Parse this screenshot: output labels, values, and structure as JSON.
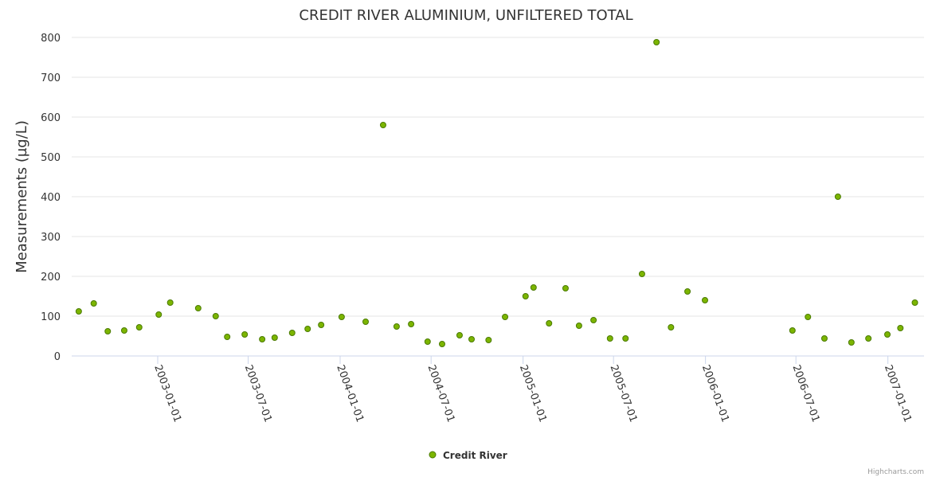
{
  "chart_data": {
    "type": "scatter",
    "title": "CREDIT RIVER ALUMINIUM, UNFILTERED TOTAL",
    "xlabel": "",
    "ylabel": "Measurements (µg/L)",
    "ylim": [
      0,
      800
    ],
    "yticks": [
      0,
      100,
      200,
      300,
      400,
      500,
      600,
      700,
      800
    ],
    "xlim": [
      "2002-07-01",
      "2007-03-05"
    ],
    "xticks": [
      "2003-01-01",
      "2003-07-01",
      "2004-01-01",
      "2004-07-01",
      "2005-01-01",
      "2005-07-01",
      "2006-01-01",
      "2006-07-01",
      "2007-01-01"
    ],
    "grid": true,
    "legend_position": "bottom-center",
    "series": [
      {
        "name": "Credit River",
        "color": "#7cb500",
        "border_color": "#4a7a00",
        "points": [
          [
            "2002-07-27",
            112
          ],
          [
            "2002-08-26",
            132
          ],
          [
            "2002-09-23",
            62
          ],
          [
            "2002-10-26",
            64
          ],
          [
            "2002-11-25",
            72
          ],
          [
            "2003-01-03",
            104
          ],
          [
            "2003-01-26",
            134
          ],
          [
            "2003-03-23",
            120
          ],
          [
            "2003-04-27",
            100
          ],
          [
            "2003-05-20",
            48
          ],
          [
            "2003-06-24",
            54
          ],
          [
            "2003-07-29",
            42
          ],
          [
            "2003-08-23",
            46
          ],
          [
            "2003-09-27",
            58
          ],
          [
            "2003-10-28",
            68
          ],
          [
            "2003-11-24",
            78
          ],
          [
            "2004-01-04",
            98
          ],
          [
            "2004-02-21",
            86
          ],
          [
            "2004-03-27",
            580
          ],
          [
            "2004-04-23",
            74
          ],
          [
            "2004-05-22",
            80
          ],
          [
            "2004-06-24",
            36
          ],
          [
            "2004-07-23",
            30
          ],
          [
            "2004-08-27",
            52
          ],
          [
            "2004-09-20",
            42
          ],
          [
            "2004-10-24",
            40
          ],
          [
            "2004-11-26",
            98
          ],
          [
            "2005-01-06",
            150
          ],
          [
            "2005-01-22",
            172
          ],
          [
            "2005-02-22",
            82
          ],
          [
            "2005-03-27",
            170
          ],
          [
            "2005-04-23",
            76
          ],
          [
            "2005-05-22",
            90
          ],
          [
            "2005-06-24",
            44
          ],
          [
            "2005-07-25",
            44
          ],
          [
            "2005-08-27",
            206
          ],
          [
            "2005-09-25",
            788
          ],
          [
            "2005-10-24",
            72
          ],
          [
            "2005-11-26",
            162
          ],
          [
            "2005-12-31",
            140
          ],
          [
            "2006-06-24",
            64
          ],
          [
            "2006-07-25",
            98
          ],
          [
            "2006-08-27",
            44
          ],
          [
            "2006-09-23",
            400
          ],
          [
            "2006-10-20",
            34
          ],
          [
            "2006-11-23",
            44
          ],
          [
            "2006-12-31",
            54
          ],
          [
            "2007-01-26",
            70
          ],
          [
            "2007-02-24",
            134
          ]
        ]
      }
    ]
  },
  "credits": "Highcharts.com"
}
